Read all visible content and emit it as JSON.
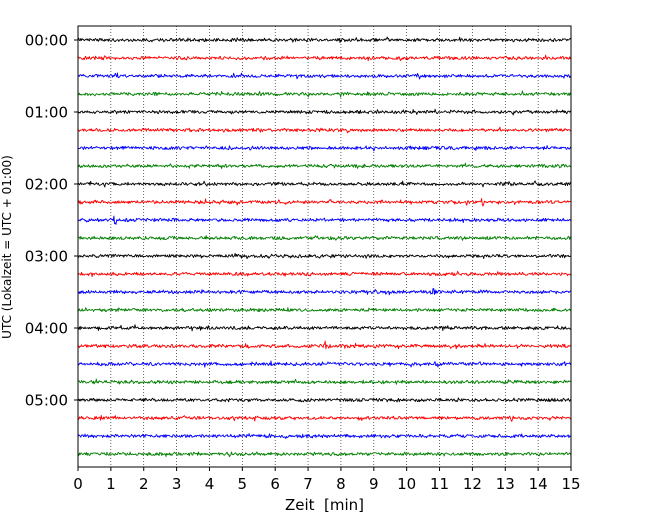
{
  "chart_data": {
    "type": "line",
    "title": "",
    "xlabel": "Zeit  [min]",
    "ylabel": "UTC (Lokalzeit = UTC + 01:00)",
    "xlim": [
      0,
      15
    ],
    "x_ticks": [
      "0",
      "1",
      "2",
      "3",
      "4",
      "5",
      "6",
      "7",
      "8",
      "9",
      "10",
      "11",
      "12",
      "13",
      "14",
      "15"
    ],
    "y_tick_labels": [
      "00:00",
      "01:00",
      "02:00",
      "03:00",
      "04:00",
      "05:00"
    ],
    "y_ticks_at_trace": [
      0,
      4,
      8,
      12,
      16,
      20
    ],
    "trace_count": 24,
    "trace_interval_minutes": 15,
    "trace_colors": [
      "#000000",
      "#ff0000",
      "#0000ff",
      "#008000"
    ],
    "grid": "vertical dotted",
    "spikes": [
      {
        "trace": 1,
        "minute": 9.8,
        "amplitude": 1.4
      },
      {
        "trace": 9,
        "minute": 12.3,
        "amplitude": 1.5
      },
      {
        "trace": 10,
        "minute": 1.1,
        "amplitude": 2.2
      },
      {
        "trace": 14,
        "minute": 10.8,
        "amplitude": 1.6
      },
      {
        "trace": 17,
        "minute": 7.5,
        "amplitude": 1.6
      },
      {
        "trace": 18,
        "minute": 10.9,
        "amplitude": 1.4
      },
      {
        "trace": 21,
        "minute": 13.2,
        "amplitude": 1.3
      }
    ]
  }
}
